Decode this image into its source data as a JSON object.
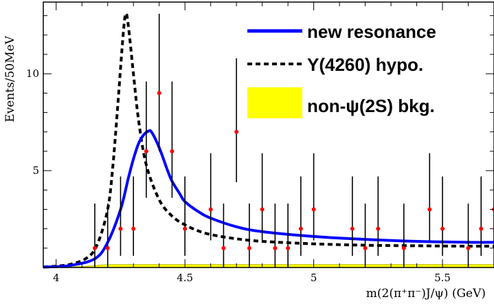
{
  "chart_data": {
    "type": "scatter",
    "xlabel": "m(2(π⁺π⁻)J/ψ)  (GeV)",
    "ylabel": "Events/50MeV",
    "xlim": [
      3.95,
      5.7
    ],
    "ylim": [
      0,
      13.7
    ],
    "x_ticks": [
      4,
      4.5,
      5,
      5.5
    ],
    "x_tick_labels": [
      "4",
      "4.5",
      "5",
      "5.5"
    ],
    "y_ticks": [
      5,
      10
    ],
    "y_tick_labels": [
      "5",
      "10"
    ],
    "legend_position": "top-right",
    "colors": {
      "data": "#ff0000",
      "new_resonance": "#0000ff",
      "y4260": "#000000",
      "bkg": "#ffff00"
    },
    "data_points": [
      {
        "x": 4.15,
        "y": 1,
        "err_lo": 1,
        "err_hi": 2.3
      },
      {
        "x": 4.2,
        "y": 1,
        "err_lo": 1,
        "err_hi": 2.3
      },
      {
        "x": 4.25,
        "y": 2,
        "err_lo": 1.4,
        "err_hi": 2.7
      },
      {
        "x": 4.3,
        "y": 2,
        "err_lo": 1.4,
        "err_hi": 2.7
      },
      {
        "x": 4.35,
        "y": 6,
        "err_lo": 2.4,
        "err_hi": 3.6
      },
      {
        "x": 4.4,
        "y": 9,
        "err_lo": 3.0,
        "err_hi": 4.1
      },
      {
        "x": 4.45,
        "y": 6,
        "err_lo": 2.4,
        "err_hi": 3.6
      },
      {
        "x": 4.5,
        "y": 2,
        "err_lo": 1.4,
        "err_hi": 2.7
      },
      {
        "x": 4.6,
        "y": 3,
        "err_lo": 1.6,
        "err_hi": 2.9
      },
      {
        "x": 4.65,
        "y": 1,
        "err_lo": 1,
        "err_hi": 2.3
      },
      {
        "x": 4.7,
        "y": 7,
        "err_lo": 2.6,
        "err_hi": 3.8
      },
      {
        "x": 4.75,
        "y": 1,
        "err_lo": 1,
        "err_hi": 2.3
      },
      {
        "x": 4.8,
        "y": 3,
        "err_lo": 1.6,
        "err_hi": 2.9
      },
      {
        "x": 4.85,
        "y": 1,
        "err_lo": 1,
        "err_hi": 2.3
      },
      {
        "x": 4.9,
        "y": 1,
        "err_lo": 1,
        "err_hi": 2.3
      },
      {
        "x": 4.95,
        "y": 2,
        "err_lo": 1.4,
        "err_hi": 2.7
      },
      {
        "x": 5.0,
        "y": 3,
        "err_lo": 1.6,
        "err_hi": 2.9
      },
      {
        "x": 5.15,
        "y": 2,
        "err_lo": 1.4,
        "err_hi": 2.7
      },
      {
        "x": 5.2,
        "y": 1,
        "err_lo": 1,
        "err_hi": 2.3
      },
      {
        "x": 5.25,
        "y": 2,
        "err_lo": 1.4,
        "err_hi": 2.7
      },
      {
        "x": 5.35,
        "y": 1,
        "err_lo": 1,
        "err_hi": 2.3
      },
      {
        "x": 5.45,
        "y": 3,
        "err_lo": 1.6,
        "err_hi": 2.9
      },
      {
        "x": 5.5,
        "y": 2,
        "err_lo": 1.4,
        "err_hi": 2.7
      },
      {
        "x": 5.6,
        "y": 1,
        "err_lo": 1,
        "err_hi": 2.3
      },
      {
        "x": 5.65,
        "y": 2,
        "err_lo": 1.4,
        "err_hi": 2.7
      },
      {
        "x": 5.7,
        "y": 3,
        "err_lo": 1.6,
        "err_hi": 2.9
      }
    ],
    "series": [
      {
        "name": "new resonance",
        "style": "solid",
        "x": [
          3.95,
          4.05,
          4.15,
          4.2,
          4.25,
          4.28,
          4.3,
          4.32,
          4.34,
          4.36,
          4.37,
          4.39,
          4.41,
          4.43,
          4.45,
          4.48,
          4.5,
          4.55,
          4.6,
          4.7,
          4.8,
          5.0,
          5.2,
          5.4,
          5.6,
          5.7
        ],
        "y": [
          0.02,
          0.1,
          0.45,
          1.3,
          3.0,
          4.6,
          5.6,
          6.4,
          6.85,
          7.05,
          7.0,
          6.5,
          5.85,
          5.1,
          4.45,
          3.8,
          3.4,
          2.9,
          2.55,
          2.1,
          1.85,
          1.6,
          1.45,
          1.35,
          1.3,
          1.3
        ]
      },
      {
        "name": "Y(4260) hypo.",
        "style": "dashed",
        "x": [
          3.95,
          4.05,
          4.12,
          4.16,
          4.2,
          4.22,
          4.24,
          4.26,
          4.27,
          4.28,
          4.3,
          4.32,
          4.35,
          4.4,
          4.45,
          4.5,
          4.55,
          4.6,
          4.7,
          4.8,
          5.0,
          5.2,
          5.4,
          5.6,
          5.7
        ],
        "y": [
          0.02,
          0.15,
          0.5,
          1.2,
          3.0,
          5.2,
          8.5,
          12.0,
          13.1,
          12.5,
          10.0,
          7.6,
          5.3,
          3.5,
          2.65,
          2.2,
          1.9,
          1.7,
          1.48,
          1.35,
          1.22,
          1.15,
          1.12,
          1.1,
          1.1
        ]
      },
      {
        "name": "non-ψ(2S) bkg.",
        "style": "filled",
        "x": [
          3.95,
          4.1,
          4.2,
          5.7
        ],
        "y": [
          0.0,
          0.05,
          0.15,
          0.15
        ]
      }
    ]
  }
}
